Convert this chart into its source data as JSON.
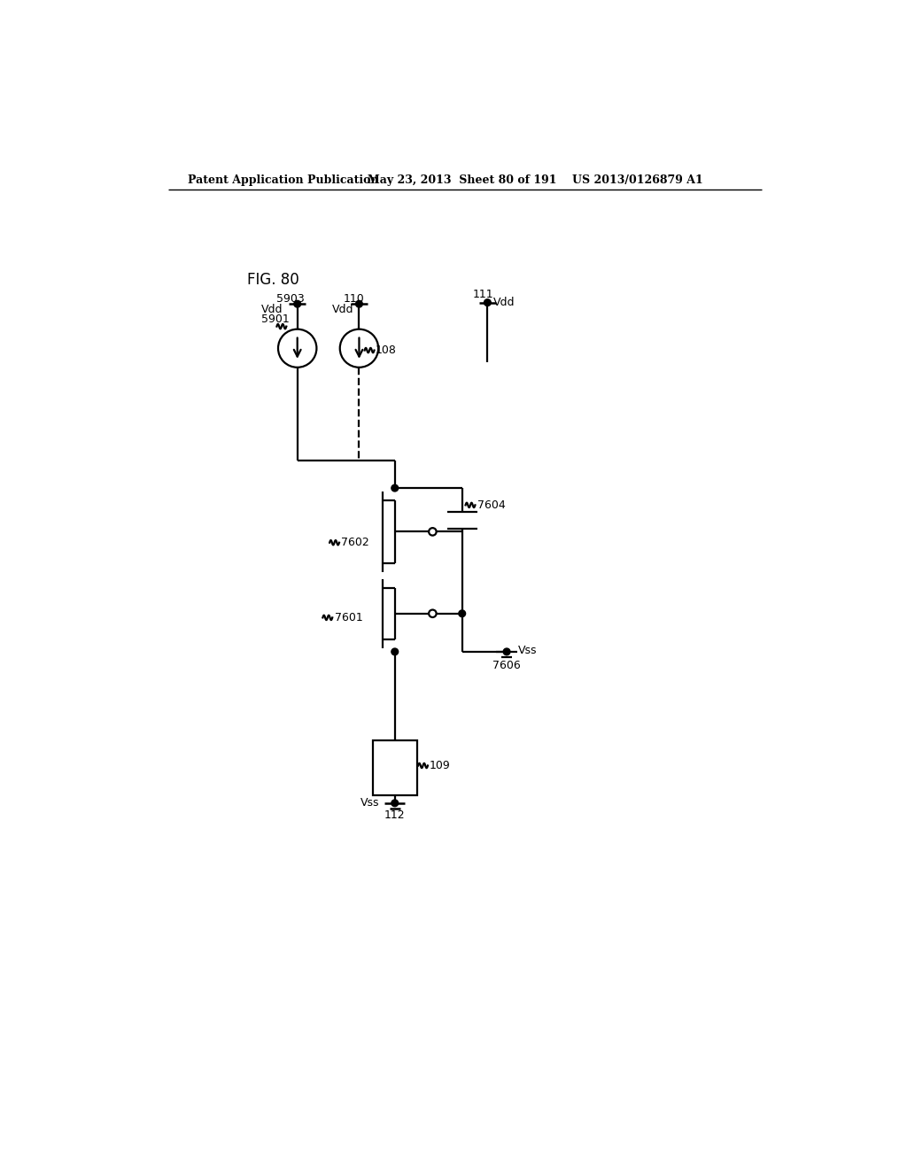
{
  "header_left": "Patent Application Publication",
  "header_mid": "May 23, 2013  Sheet 80 of 191",
  "header_right": "US 2013/0126879 A1",
  "background": "#ffffff",
  "fig_label": "FIG. 80"
}
